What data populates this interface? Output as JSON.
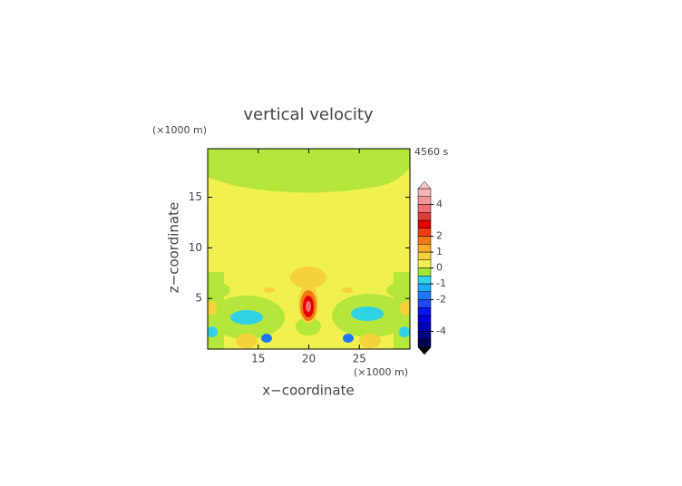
{
  "chart_data": {
    "type": "contour",
    "title": "vertical velocity",
    "time_label": "4560 s",
    "x_label": "x−coordinate",
    "y_label": "z−coordinate",
    "x_unit": "(×1000 m)",
    "y_unit": "(×1000 m)",
    "xlim": [
      10,
      30
    ],
    "xticks": [
      15,
      20,
      25
    ],
    "ylim": [
      0,
      19.8
    ],
    "yticks": [
      5,
      10,
      15
    ],
    "colorbar": {
      "lim": [
        -5,
        5
      ],
      "ticks": [
        -4,
        -2,
        -1,
        0,
        1,
        2,
        4
      ],
      "levels": [
        -5,
        -4.5,
        -4,
        -3.5,
        -3,
        -2.5,
        -2,
        -1.5,
        -1,
        -0.5,
        0,
        0.5,
        1,
        1.5,
        2,
        2.5,
        3,
        3.5,
        4,
        4.5,
        5
      ],
      "colors": [
        "#000050",
        "#000080",
        "#0000b4",
        "#0000dc",
        "#0a14f0",
        "#1e46f5",
        "#1e78ff",
        "#1eaaff",
        "#32d2e6",
        "#a0e632",
        "#f0f050",
        "#f5d23c",
        "#f5aa28",
        "#f07814",
        "#f03c14",
        "#e60000",
        "#dc3c3c",
        "#f06e6e",
        "#f09696",
        "#f5b4b4"
      ],
      "over_color": "#f5c8c8",
      "under_color": "#000000"
    }
  }
}
